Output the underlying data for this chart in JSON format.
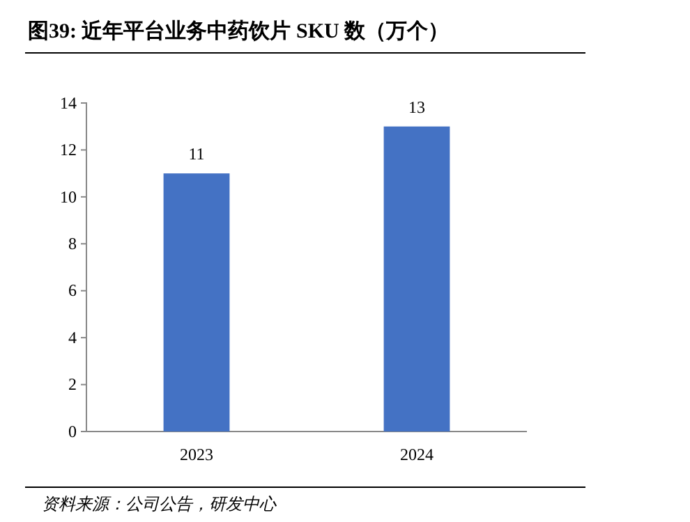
{
  "chart_data": {
    "type": "bar",
    "title": "图39: 近年平台业务中药饮片 SKU 数（万个）",
    "categories": [
      "2023",
      "2024"
    ],
    "values": [
      11,
      13
    ],
    "color": "#4472c4",
    "ylim": [
      0,
      14
    ],
    "yticks": [
      0,
      2,
      4,
      6,
      8,
      10,
      12,
      14
    ],
    "data_labels": true,
    "grid": false,
    "annotations": [
      "资料来源：公司公告，研发中心"
    ]
  }
}
